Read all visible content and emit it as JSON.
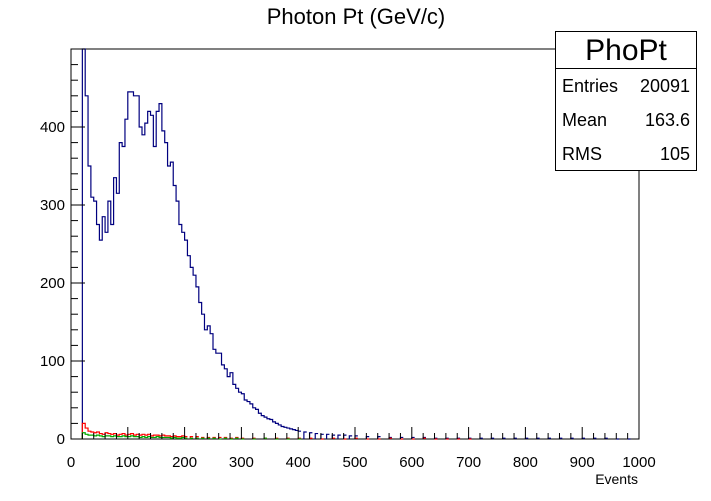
{
  "chart_data": {
    "type": "histogram",
    "title": "Photon Pt (GeV/c)",
    "xlabel": "Events",
    "ylabel": "",
    "xlim": [
      0,
      1000
    ],
    "ylim": [
      0,
      500
    ],
    "xticks": [
      0,
      100,
      200,
      300,
      400,
      500,
      600,
      700,
      800,
      900,
      1000
    ],
    "yticks": [
      0,
      100,
      200,
      300,
      400
    ],
    "grid": false,
    "bin_width": 5,
    "series": [
      {
        "color": "#00007f",
        "x": [
          20,
          25,
          30,
          35,
          40,
          45,
          50,
          55,
          60,
          65,
          70,
          75,
          80,
          85,
          90,
          95,
          100,
          105,
          110,
          115,
          120,
          125,
          130,
          135,
          140,
          145,
          150,
          155,
          160,
          165,
          170,
          175,
          180,
          185,
          190,
          195,
          200,
          205,
          210,
          215,
          220,
          225,
          230,
          235,
          240,
          245,
          250,
          255,
          260,
          265,
          270,
          275,
          280,
          285,
          290,
          295,
          300,
          305,
          310,
          315,
          320,
          325,
          330,
          335,
          340,
          345,
          350,
          355,
          360,
          365,
          370,
          375,
          380,
          385,
          390,
          395,
          400,
          410,
          420,
          430,
          440,
          450,
          460,
          470,
          480,
          490,
          500,
          520,
          540,
          560,
          580,
          600,
          620,
          640,
          660,
          680,
          700,
          720,
          740,
          760,
          780,
          800,
          820,
          840,
          860,
          880,
          900,
          920,
          940,
          960,
          980
        ],
        "values": [
          510,
          440,
          350,
          310,
          305,
          275,
          255,
          285,
          265,
          305,
          275,
          335,
          315,
          380,
          375,
          410,
          445,
          445,
          440,
          440,
          400,
          390,
          405,
          420,
          415,
          375,
          420,
          430,
          395,
          380,
          350,
          355,
          325,
          305,
          275,
          265,
          255,
          235,
          220,
          210,
          195,
          175,
          160,
          140,
          145,
          135,
          115,
          110,
          110,
          95,
          90,
          80,
          85,
          70,
          65,
          60,
          58,
          50,
          48,
          45,
          40,
          38,
          33,
          30,
          28,
          26,
          25,
          22,
          20,
          18,
          16,
          15,
          14,
          13,
          12,
          11,
          10,
          9,
          8,
          7,
          6,
          6,
          5,
          5,
          5,
          4,
          4,
          3,
          3,
          2,
          2,
          2,
          2,
          1,
          1,
          1,
          1,
          1,
          1,
          1,
          1,
          1,
          1,
          1,
          1,
          1,
          1,
          1,
          1,
          0,
          0
        ]
      },
      {
        "color": "#ff0000",
        "x": [
          20,
          25,
          30,
          35,
          40,
          45,
          50,
          55,
          60,
          65,
          70,
          75,
          80,
          85,
          90,
          95,
          100,
          105,
          110,
          115,
          120,
          125,
          130,
          135,
          140,
          145,
          150,
          155,
          160,
          165,
          170,
          175,
          180,
          185,
          190,
          195,
          200,
          210,
          220,
          230,
          240,
          250,
          260,
          270,
          280,
          290,
          300,
          320,
          340,
          360,
          380,
          400,
          420,
          440,
          460,
          480,
          500,
          520,
          540,
          560,
          580,
          600,
          620,
          640,
          660,
          680,
          700
        ],
        "values": [
          20,
          14,
          10,
          9,
          8,
          9,
          7,
          6,
          8,
          7,
          6,
          7,
          5,
          6,
          7,
          5,
          6,
          7,
          5,
          6,
          5,
          6,
          5,
          6,
          4,
          5,
          5,
          4,
          5,
          4,
          4,
          3,
          4,
          3,
          3,
          4,
          3,
          3,
          3,
          2,
          2,
          2,
          2,
          2,
          1,
          2,
          1,
          1,
          1,
          1,
          1,
          1,
          1,
          0,
          1,
          0,
          1,
          0,
          0,
          1,
          0,
          0,
          1,
          0,
          0,
          0,
          0
        ]
      },
      {
        "color": "#00aa00",
        "x": [
          20,
          25,
          30,
          35,
          40,
          45,
          50,
          55,
          60,
          65,
          70,
          75,
          80,
          85,
          90,
          95,
          100,
          105,
          110,
          115,
          120,
          125,
          130,
          135,
          140,
          145,
          150,
          155,
          160,
          165,
          170,
          175,
          180,
          185,
          190,
          195,
          200,
          210,
          220,
          230,
          240,
          250,
          260,
          270,
          280,
          290,
          300,
          320,
          340,
          360,
          380,
          400
        ],
        "values": [
          8,
          6,
          5,
          5,
          4,
          5,
          4,
          3,
          4,
          4,
          3,
          4,
          3,
          3,
          4,
          3,
          3,
          4,
          3,
          3,
          2,
          3,
          2,
          3,
          2,
          2,
          3,
          2,
          2,
          2,
          2,
          1,
          2,
          1,
          1,
          2,
          1,
          1,
          1,
          1,
          1,
          1,
          0,
          1,
          0,
          1,
          0,
          0,
          1,
          0,
          0,
          0
        ]
      }
    ]
  },
  "stats": {
    "name": "PhoPt",
    "rows": [
      {
        "label": "Entries",
        "value": "20091"
      },
      {
        "label": "Mean",
        "value": "163.6"
      },
      {
        "label": "RMS",
        "value": "105"
      }
    ]
  }
}
